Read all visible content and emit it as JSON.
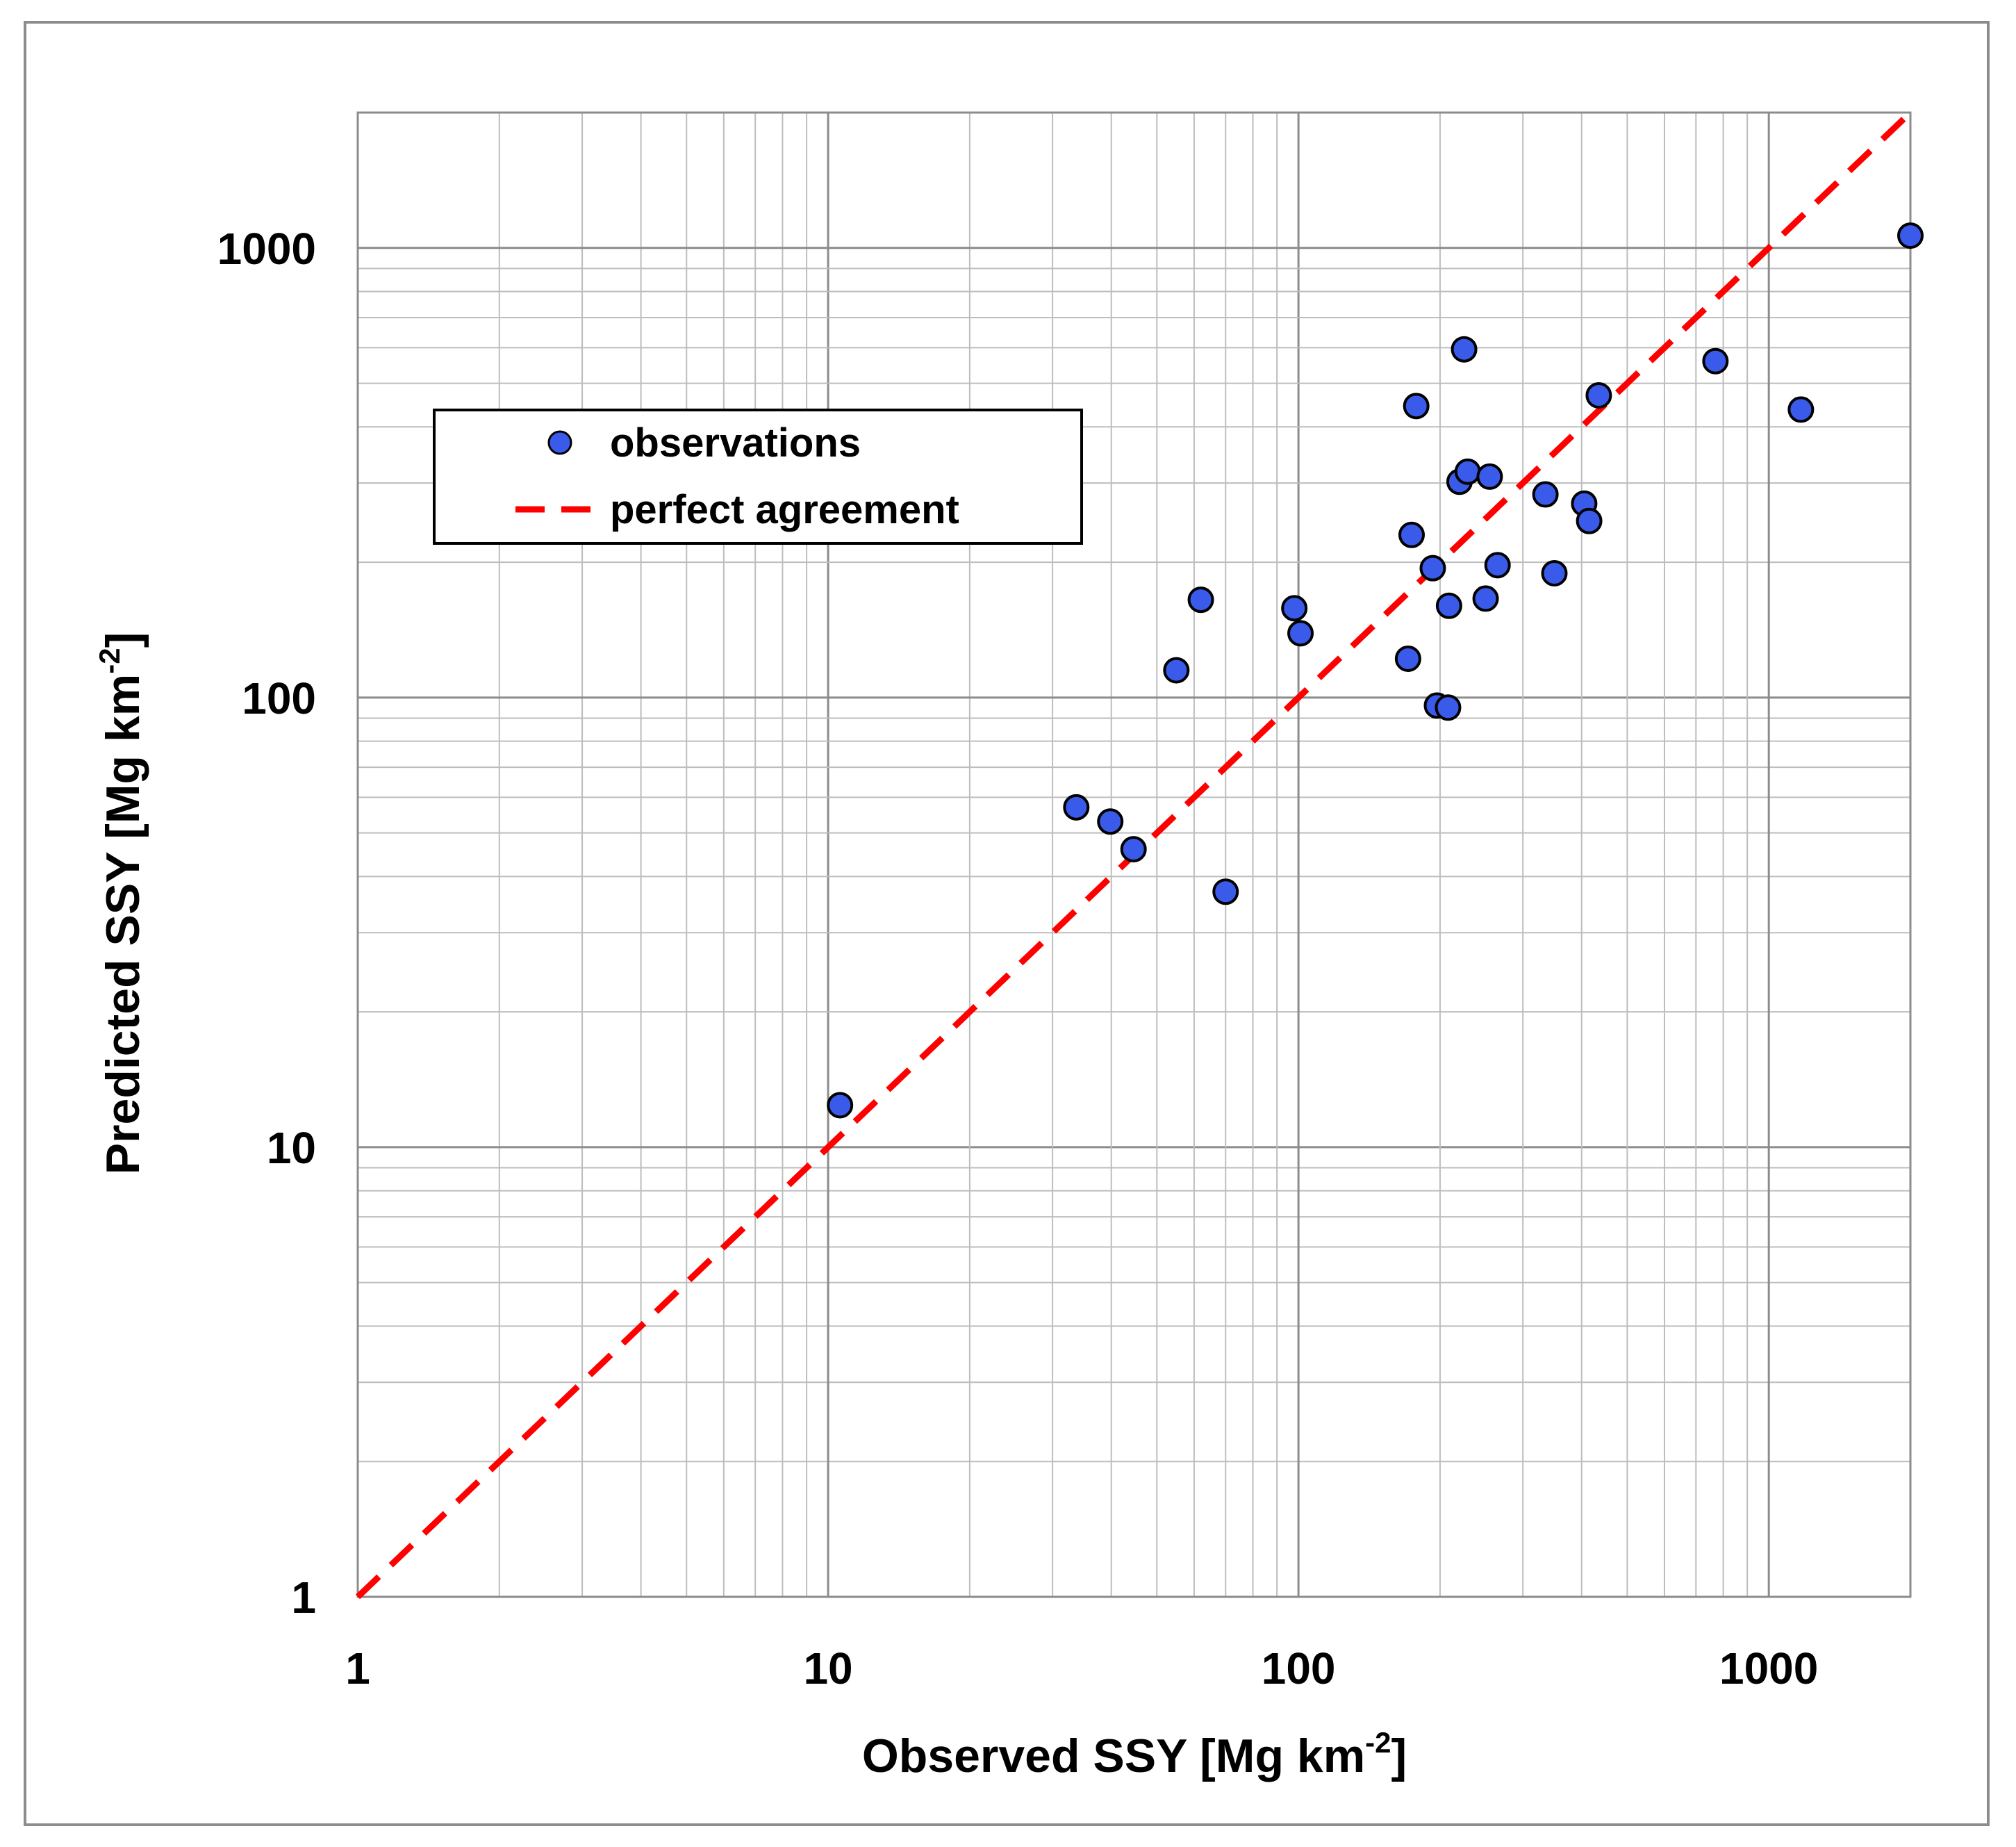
{
  "chart_data": {
    "type": "scatter",
    "xscale": "log",
    "yscale": "log",
    "xlim": [
      1,
      2000
    ],
    "ylim": [
      1,
      2000
    ],
    "xticks": [
      1,
      10,
      100,
      1000
    ],
    "yticks": [
      1,
      10,
      100,
      1000
    ],
    "xtick_labels": [
      "1",
      "10",
      "100",
      "1000"
    ],
    "ytick_labels": [
      "1",
      "10",
      "100",
      "1000"
    ],
    "grid": true,
    "xlabel": {
      "prefix": "Observed SSY  [Mg km",
      "sup": "-2",
      "suffix": "]"
    },
    "ylabel": {
      "prefix": "Predicted SSY [Mg km",
      "sup": "-2",
      "suffix": "]"
    },
    "legend": {
      "placement": "upper-left",
      "entries": [
        "observations",
        "perfect agreement"
      ]
    },
    "series": [
      {
        "name": "observations",
        "type": "scatter",
        "color": "#3a5bea",
        "edge_color": "#000000",
        "points": [
          {
            "x": 10.6,
            "y": 12.4
          },
          {
            "x": 33.7,
            "y": 57
          },
          {
            "x": 39.8,
            "y": 53
          },
          {
            "x": 44.6,
            "y": 46
          },
          {
            "x": 55,
            "y": 115
          },
          {
            "x": 62,
            "y": 165
          },
          {
            "x": 70,
            "y": 37
          },
          {
            "x": 98,
            "y": 158
          },
          {
            "x": 101,
            "y": 139
          },
          {
            "x": 171,
            "y": 122
          },
          {
            "x": 174,
            "y": 230
          },
          {
            "x": 178,
            "y": 445
          },
          {
            "x": 193,
            "y": 194
          },
          {
            "x": 197,
            "y": 96
          },
          {
            "x": 208,
            "y": 95
          },
          {
            "x": 209,
            "y": 160
          },
          {
            "x": 220,
            "y": 302
          },
          {
            "x": 225,
            "y": 595
          },
          {
            "x": 229,
            "y": 318
          },
          {
            "x": 250,
            "y": 166
          },
          {
            "x": 255,
            "y": 310
          },
          {
            "x": 265,
            "y": 197
          },
          {
            "x": 335,
            "y": 283
          },
          {
            "x": 350,
            "y": 189
          },
          {
            "x": 405,
            "y": 270
          },
          {
            "x": 415,
            "y": 247
          },
          {
            "x": 435,
            "y": 470
          },
          {
            "x": 770,
            "y": 560
          },
          {
            "x": 1170,
            "y": 437
          },
          {
            "x": 2000,
            "y": 1065
          }
        ]
      },
      {
        "name": "perfect agreement",
        "type": "line",
        "style": "dashed",
        "color": "#ff0000",
        "x": [
          1,
          2000
        ],
        "y": [
          1,
          2000
        ]
      }
    ]
  }
}
